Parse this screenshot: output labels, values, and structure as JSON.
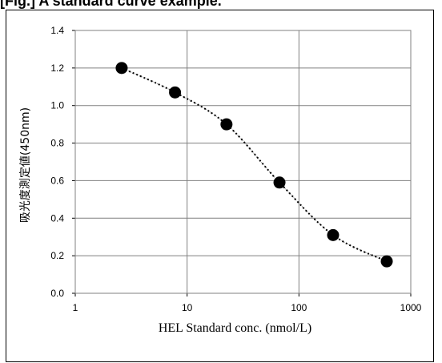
{
  "header": {
    "title": "[Fig.] A standard curve example."
  },
  "chart_data": {
    "type": "scatter",
    "title": "",
    "xlabel": "HEL Standard conc. (nmol/L)",
    "ylabel": "吸光度測定値(450nm)",
    "x_scale": "log",
    "xlim": [
      1,
      1000
    ],
    "ylim": [
      0.0,
      1.4
    ],
    "x_ticks": [
      "1",
      "10",
      "100",
      "1000"
    ],
    "y_ticks": [
      "0.0",
      "0.2",
      "0.4",
      "0.6",
      "0.8",
      "1.0",
      "1.2",
      "1.4"
    ],
    "grid": true,
    "marker_color": "#000000",
    "series": [
      {
        "x": [
          2.6,
          7.8,
          22.5,
          67,
          202,
          610
        ],
        "y": [
          1.2,
          1.07,
          0.9,
          0.59,
          0.31,
          0.17
        ]
      }
    ],
    "trend_line": "dotted"
  }
}
